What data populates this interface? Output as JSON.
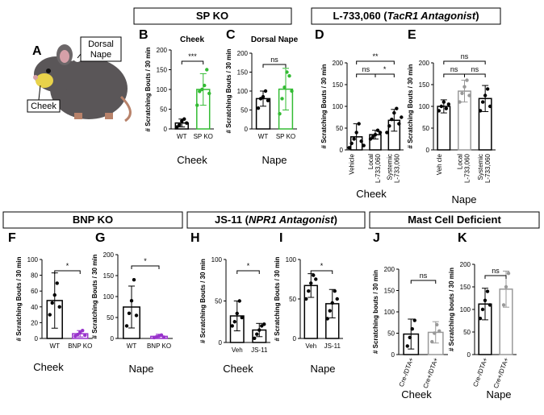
{
  "headers": [
    {
      "parts": [
        "SP KO"
      ]
    },
    {
      "parts": [
        "L-733,060 (",
        "TacR1 Antagonist",
        ")"
      ]
    },
    {
      "parts": [
        "BNP KO"
      ]
    },
    {
      "parts": [
        "JS-11 (",
        "NPR1 Antagonist",
        ")"
      ]
    },
    {
      "parts": [
        "Mast Cell Deficient"
      ]
    }
  ],
  "mouse": {
    "letter": "A",
    "labels": [
      "Dorsal",
      "Nape",
      "Cheek"
    ]
  },
  "chart_data": [
    {
      "type": "bar",
      "letter": "B",
      "title": "Cheek",
      "caption": "Cheek",
      "ylabel": "# Scratching Bouts / 30 min",
      "categories": [
        "WT",
        "SP KO"
      ],
      "colors": [
        "#000000",
        "#33bb33"
      ],
      "values": [
        15,
        100
      ],
      "errors": [
        10,
        40
      ],
      "points": [
        [
          5,
          10,
          20,
          25,
          15
        ],
        [
          60,
          95,
          100,
          110,
          150,
          90
        ]
      ],
      "ylim": [
        0,
        200
      ],
      "yticks": [
        0,
        50,
        100,
        150,
        200
      ],
      "annotations": [
        {
          "between": [
            0,
            1
          ],
          "label": "***"
        }
      ]
    },
    {
      "type": "bar",
      "letter": "C",
      "title": "Dorsal Nape",
      "caption": "Nape",
      "ylabel": "# Scratching Bouts / 30 min",
      "categories": [
        "WT",
        "SP KO"
      ],
      "colors": [
        "#000000",
        "#33bb33"
      ],
      "values": [
        80,
        105
      ],
      "errors": [
        20,
        55
      ],
      "points": [
        [
          55,
          80,
          85,
          100,
          75
        ],
        [
          40,
          80,
          110,
          150,
          140,
          100
        ]
      ],
      "ylim": [
        0,
        200
      ],
      "yticks": [
        0,
        50,
        100,
        150,
        200
      ],
      "annotations": [
        {
          "between": [
            0,
            1
          ],
          "label": "ns"
        }
      ]
    },
    {
      "type": "bar",
      "letter": "D",
      "caption": "Cheek",
      "ylabel": "# Scratching Bouts / 30 min",
      "categories": [
        [
          "Vehicle"
        ],
        [
          "Local",
          "L-733,060"
        ],
        [
          "Systemic",
          "L-733,060"
        ]
      ],
      "colors": [
        "#000000",
        "#000000",
        "#000000"
      ],
      "values": [
        30,
        35,
        68
      ],
      "errors": [
        30,
        10,
        25
      ],
      "points": [
        [
          5,
          15,
          25,
          40,
          60,
          20,
          10
        ],
        [
          25,
          30,
          35,
          45,
          40
        ],
        [
          40,
          55,
          70,
          85,
          95,
          60,
          75
        ]
      ],
      "ylim": [
        0,
        200
      ],
      "yticks": [
        0,
        50,
        100,
        150,
        200
      ],
      "annotations": [
        {
          "between": [
            0,
            1
          ],
          "label": "ns"
        },
        {
          "between": [
            1,
            2
          ],
          "label": "*"
        },
        {
          "between": [
            0,
            2
          ],
          "label": "**"
        }
      ]
    },
    {
      "type": "bar",
      "letter": "E",
      "caption": "Nape",
      "ylabel": "# Scratching Bouts / 30 min",
      "categories": [
        [
          "Veh cle"
        ],
        [
          "Local",
          "L-733,060"
        ],
        [
          "Systemic",
          "L-733,060"
        ]
      ],
      "colors": [
        "#000000",
        "#999999",
        "#000000"
      ],
      "values": [
        100,
        135,
        118
      ],
      "errors": [
        15,
        25,
        30
      ],
      "points": [
        [
          90,
          100,
          110,
          95,
          105
        ],
        [
          110,
          130,
          145,
          160,
          125
        ],
        [
          90,
          110,
          125,
          140,
          100
        ]
      ],
      "ylim": [
        0,
        200
      ],
      "yticks": [
        0,
        50,
        100,
        150,
        200
      ],
      "annotations": [
        {
          "between": [
            0,
            1
          ],
          "label": "ns"
        },
        {
          "between": [
            1,
            2
          ],
          "label": "ns"
        },
        {
          "between": [
            0,
            2
          ],
          "label": "ns"
        }
      ]
    },
    {
      "type": "bar",
      "letter": "F",
      "caption": "Cheek",
      "ylabel": "# Scratching Bouts / 30 min",
      "categories": [
        "WT",
        "BNP KO"
      ],
      "colors": [
        "#000000",
        "#9933cc"
      ],
      "values": [
        48,
        6
      ],
      "errors": [
        35,
        4
      ],
      "points": [
        [
          30,
          45,
          55,
          70,
          40
        ],
        [
          3,
          5,
          8,
          10,
          4
        ]
      ],
      "ylim": [
        0,
        100
      ],
      "yticks": [
        0,
        20,
        40,
        60,
        80,
        100
      ],
      "annotations": [
        {
          "between": [
            0,
            1
          ],
          "label": "*"
        }
      ]
    },
    {
      "type": "bar",
      "letter": "G",
      "caption": "Nape",
      "ylabel": "# Scratching Bouts / 30 min",
      "categories": [
        "WT",
        "BNP KO"
      ],
      "colors": [
        "#000000",
        "#9933cc"
      ],
      "values": [
        75,
        5
      ],
      "errors": [
        50,
        5
      ],
      "points": [
        [
          30,
          60,
          90,
          140,
          55
        ],
        [
          2,
          4,
          6,
          8,
          3
        ]
      ],
      "ylim": [
        0,
        200
      ],
      "yticks": [
        0,
        50,
        100,
        150,
        200
      ],
      "annotations": [
        {
          "between": [
            0,
            1
          ],
          "label": "*"
        }
      ]
    },
    {
      "type": "bar",
      "letter": "H",
      "caption": "Cheek",
      "ylabel": "# Scratching Bouts / 30 min",
      "categories": [
        "Veh",
        "JS-11"
      ],
      "colors": [
        "#000000",
        "#000000"
      ],
      "values": [
        32,
        15
      ],
      "errors": [
        18,
        8
      ],
      "points": [
        [
          20,
          25,
          35,
          50,
          30
        ],
        [
          5,
          10,
          15,
          20,
          22
        ]
      ],
      "ylim": [
        0,
        100
      ],
      "yticks": [
        0,
        50,
        100
      ],
      "annotations": [
        {
          "between": [
            0,
            1
          ],
          "label": "*"
        }
      ]
    },
    {
      "type": "bar",
      "letter": "I",
      "caption": "Nape",
      "ylabel": "# Scratching Bouts / 30 min",
      "categories": [
        "Veh",
        "JS-11"
      ],
      "colors": [
        "#000000",
        "#000000"
      ],
      "values": [
        67,
        44
      ],
      "errors": [
        15,
        18
      ],
      "points": [
        [
          50,
          60,
          70,
          80,
          75
        ],
        [
          25,
          35,
          45,
          60,
          50
        ]
      ],
      "ylim": [
        0,
        100
      ],
      "yticks": [
        0,
        50,
        100
      ],
      "annotations": [
        {
          "between": [
            0,
            1
          ],
          "label": "*"
        }
      ]
    },
    {
      "type": "bar",
      "letter": "J",
      "caption": "Cheek",
      "ylabel": "# Scratching bouts / 30 min",
      "categories": [
        "Cre-/DTA+",
        "Cre+/DTA+"
      ],
      "colors": [
        "#000000",
        "#999999"
      ],
      "values": [
        48,
        52
      ],
      "errors": [
        35,
        25
      ],
      "points": [
        [
          20,
          40,
          60,
          80
        ],
        [
          30,
          50,
          70,
          55
        ]
      ],
      "ylim": [
        0,
        200
      ],
      "yticks": [
        0,
        50,
        100,
        150,
        200
      ],
      "annotations": [
        {
          "between": [
            0,
            1
          ],
          "label": "ns"
        }
      ]
    },
    {
      "type": "bar",
      "letter": "K",
      "caption": "Nape",
      "ylabel": "# Scratching bouts / 30 min",
      "categories": [
        "Cre-/DTA+",
        "Cre+/DTA+"
      ],
      "colors": [
        "#000000",
        "#999999"
      ],
      "values": [
        112,
        145
      ],
      "errors": [
        35,
        40
      ],
      "points": [
        [
          80,
          100,
          120,
          140,
          110
        ],
        [
          110,
          150,
          180
        ]
      ],
      "ylim": [
        0,
        200
      ],
      "yticks": [
        0,
        50,
        100,
        150,
        200
      ],
      "annotations": [
        {
          "between": [
            0,
            1
          ],
          "label": "ns"
        }
      ]
    }
  ]
}
